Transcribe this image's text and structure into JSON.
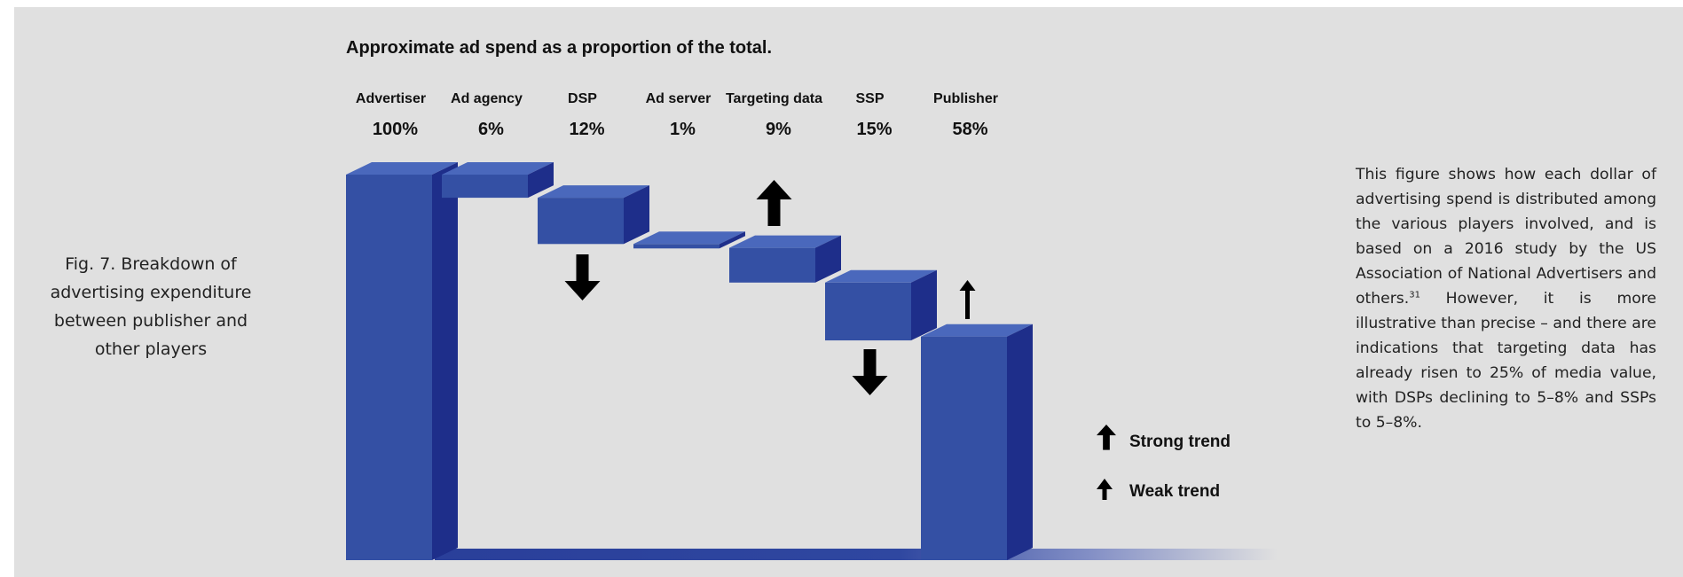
{
  "figure": {
    "caption": "Fig. 7. Breakdown of advertising expenditure between publisher and other players",
    "description": {
      "text_before": "This figure shows how each dollar of advertising spend is distributed among the various players involved, and is based on a 2016 study by the US Association of National Advertisers and others.",
      "footnote": "31",
      "text_after": " However, it is more illustrative than precise – and there are indications that targeting data has already risen to 25% of media value, with DSPs declining to 5–8% and SSPs to 5–8%."
    }
  },
  "chart_data": {
    "type": "bar",
    "subtype": "waterfall-3d",
    "title": "Approximate ad spend as a proportion of the total.",
    "categories": [
      "Advertiser",
      "Ad agency",
      "DSP",
      "Ad server",
      "Targeting data",
      "SSP",
      "Publisher"
    ],
    "values": [
      100,
      6,
      12,
      1,
      9,
      15,
      58
    ],
    "value_labels": [
      "100%",
      "6%",
      "12%",
      "1%",
      "9%",
      "15%",
      "58%"
    ],
    "unit": "%",
    "trends": [
      "none",
      "none",
      "strong-down",
      "none",
      "strong-up",
      "strong-down",
      "weak-up"
    ],
    "legend": {
      "placement": "bottom-right",
      "items": [
        {
          "label": "Strong trend",
          "icon": "thick-up-arrow-icon"
        },
        {
          "label": "Weak trend",
          "icon": "thin-up-arrow-icon"
        }
      ]
    },
    "colors": {
      "front": "#3450a4",
      "side": "#1e2e8a",
      "top": "#4a68bc",
      "arrow": "#000000"
    },
    "grid": false
  }
}
